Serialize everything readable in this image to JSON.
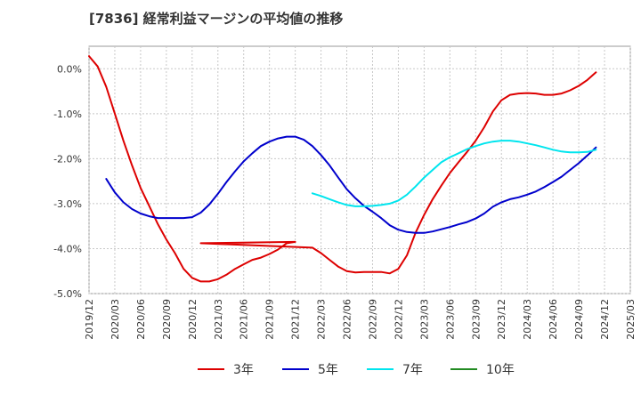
{
  "chart_data": {
    "type": "line",
    "title": "[7836]  経常利益マージンの平均値の推移",
    "xlabel": "",
    "ylabel": "",
    "ylim": [
      -5.0,
      0.5
    ],
    "xlim": [
      "2019-12",
      "2025-03"
    ],
    "x_ticks": [
      "2019/12",
      "2020/03",
      "2020/06",
      "2020/09",
      "2020/12",
      "2021/03",
      "2021/06",
      "2021/09",
      "2021/12",
      "2022/03",
      "2022/06",
      "2022/09",
      "2022/12",
      "2023/03",
      "2023/06",
      "2023/09",
      "2023/12",
      "2024/03",
      "2024/06",
      "2024/09",
      "2024/12",
      "2025/03"
    ],
    "y_ticks": [
      0.0,
      -1.0,
      -2.0,
      -3.0,
      -4.0,
      -5.0
    ],
    "y_tick_labels": [
      "0.0%",
      "-1.0%",
      "-2.0%",
      "-3.0%",
      "-4.0%",
      "-5.0%"
    ],
    "grid": true,
    "legend_position": "bottom",
    "series": [
      {
        "name": "3年",
        "color": "#dd0000",
        "points": [
          [
            "2019-12",
            0.28
          ],
          [
            "2020-01",
            0.05
          ],
          [
            "2020-02",
            -0.4
          ],
          [
            "2020-03",
            -1.0
          ],
          [
            "2020-04",
            -1.6
          ],
          [
            "2020-05",
            -2.15
          ],
          [
            "2020-06",
            -2.65
          ],
          [
            "2020-07",
            -3.05
          ],
          [
            "2020-08",
            -3.45
          ],
          [
            "2020-09",
            -3.8
          ],
          [
            "2020-10",
            -4.1
          ],
          [
            "2020-11",
            -4.45
          ],
          [
            "2020-12",
            -4.65
          ],
          [
            "2021-01",
            -4.73
          ],
          [
            "2021-02",
            -4.73
          ],
          [
            "2021-03",
            -4.68
          ],
          [
            "2021-04",
            -4.58
          ],
          [
            "2021-05",
            -4.45
          ],
          [
            "2021-06",
            -4.35
          ],
          [
            "2021-07",
            -4.25
          ],
          [
            "2021-08",
            -4.2
          ],
          [
            "2021-09",
            -4.12
          ],
          [
            "2021-10",
            -4.02
          ],
          [
            "2021-11",
            -3.88
          ],
          [
            "2021-12",
            -3.85
          ],
          [
            "2021-01",
            -3.88
          ],
          [
            "2022-02",
            -3.98
          ],
          [
            "2022-03",
            -4.1
          ],
          [
            "2022-04",
            -4.25
          ],
          [
            "2022-05",
            -4.4
          ],
          [
            "2022-06",
            -4.5
          ],
          [
            "2022-07",
            -4.53
          ],
          [
            "2022-08",
            -4.52
          ],
          [
            "2022-09",
            -4.52
          ],
          [
            "2022-10",
            -4.52
          ],
          [
            "2022-11",
            -4.55
          ],
          [
            "2022-12",
            -4.45
          ],
          [
            "2023-01",
            -4.15
          ],
          [
            "2023-02",
            -3.65
          ],
          [
            "2023-03",
            -3.25
          ],
          [
            "2023-04",
            -2.9
          ],
          [
            "2023-05",
            -2.6
          ],
          [
            "2023-06",
            -2.32
          ],
          [
            "2023-07",
            -2.08
          ],
          [
            "2023-08",
            -1.85
          ],
          [
            "2023-09",
            -1.6
          ],
          [
            "2023-10",
            -1.3
          ],
          [
            "2023-11",
            -0.95
          ],
          [
            "2023-12",
            -0.7
          ],
          [
            "2024-01",
            -0.58
          ],
          [
            "2024-02",
            -0.55
          ],
          [
            "2024-03",
            -0.54
          ],
          [
            "2024-04",
            -0.55
          ],
          [
            "2024-05",
            -0.58
          ],
          [
            "2024-06",
            -0.58
          ],
          [
            "2024-07",
            -0.55
          ],
          [
            "2024-08",
            -0.48
          ],
          [
            "2024-09",
            -0.38
          ],
          [
            "2024-10",
            -0.25
          ],
          [
            "2024-11",
            -0.08
          ]
        ]
      },
      {
        "name": "5年",
        "color": "#0000cc",
        "points": [
          [
            "2020-02",
            -2.45
          ],
          [
            "2020-03",
            -2.75
          ],
          [
            "2020-04",
            -2.97
          ],
          [
            "2020-05",
            -3.12
          ],
          [
            "2020-06",
            -3.22
          ],
          [
            "2020-07",
            -3.28
          ],
          [
            "2020-08",
            -3.32
          ],
          [
            "2020-09",
            -3.32
          ],
          [
            "2020-10",
            -3.32
          ],
          [
            "2020-11",
            -3.32
          ],
          [
            "2020-12",
            -3.3
          ],
          [
            "2021-01",
            -3.2
          ],
          [
            "2021-02",
            -3.02
          ],
          [
            "2021-03",
            -2.78
          ],
          [
            "2021-04",
            -2.52
          ],
          [
            "2021-05",
            -2.28
          ],
          [
            "2021-06",
            -2.06
          ],
          [
            "2021-07",
            -1.88
          ],
          [
            "2021-08",
            -1.72
          ],
          [
            "2021-09",
            -1.62
          ],
          [
            "2021-10",
            -1.55
          ],
          [
            "2021-11",
            -1.51
          ],
          [
            "2021-12",
            -1.51
          ],
          [
            "2022-01",
            -1.58
          ],
          [
            "2022-02",
            -1.72
          ],
          [
            "2022-03",
            -1.92
          ],
          [
            "2022-04",
            -2.15
          ],
          [
            "2022-05",
            -2.42
          ],
          [
            "2022-06",
            -2.68
          ],
          [
            "2022-07",
            -2.88
          ],
          [
            "2022-08",
            -3.05
          ],
          [
            "2022-09",
            -3.18
          ],
          [
            "2022-10",
            -3.32
          ],
          [
            "2022-11",
            -3.48
          ],
          [
            "2022-12",
            -3.58
          ],
          [
            "2023-01",
            -3.63
          ],
          [
            "2023-02",
            -3.65
          ],
          [
            "2023-03",
            -3.65
          ],
          [
            "2023-04",
            -3.62
          ],
          [
            "2023-05",
            -3.57
          ],
          [
            "2023-06",
            -3.52
          ],
          [
            "2023-07",
            -3.46
          ],
          [
            "2023-08",
            -3.41
          ],
          [
            "2023-09",
            -3.33
          ],
          [
            "2023-10",
            -3.22
          ],
          [
            "2023-11",
            -3.07
          ],
          [
            "2023-12",
            -2.97
          ],
          [
            "2024-01",
            -2.9
          ],
          [
            "2024-02",
            -2.86
          ],
          [
            "2024-03",
            -2.8
          ],
          [
            "2024-04",
            -2.73
          ],
          [
            "2024-05",
            -2.63
          ],
          [
            "2024-06",
            -2.52
          ],
          [
            "2024-07",
            -2.4
          ],
          [
            "2024-08",
            -2.25
          ],
          [
            "2024-09",
            -2.1
          ],
          [
            "2024-10",
            -1.93
          ],
          [
            "2024-11",
            -1.75
          ]
        ]
      },
      {
        "name": "7年",
        "color": "#00e5ee",
        "points": [
          [
            "2022-02",
            -2.77
          ],
          [
            "2022-03",
            -2.83
          ],
          [
            "2022-04",
            -2.9
          ],
          [
            "2022-05",
            -2.97
          ],
          [
            "2022-06",
            -3.03
          ],
          [
            "2022-07",
            -3.06
          ],
          [
            "2022-08",
            -3.06
          ],
          [
            "2022-09",
            -3.05
          ],
          [
            "2022-10",
            -3.03
          ],
          [
            "2022-11",
            -3.0
          ],
          [
            "2022-12",
            -2.93
          ],
          [
            "2023-01",
            -2.8
          ],
          [
            "2023-02",
            -2.62
          ],
          [
            "2023-03",
            -2.42
          ],
          [
            "2023-04",
            -2.25
          ],
          [
            "2023-05",
            -2.08
          ],
          [
            "2023-06",
            -1.97
          ],
          [
            "2023-07",
            -1.88
          ],
          [
            "2023-08",
            -1.79
          ],
          [
            "2023-09",
            -1.72
          ],
          [
            "2023-10",
            -1.66
          ],
          [
            "2023-11",
            -1.62
          ],
          [
            "2023-12",
            -1.6
          ],
          [
            "2024-01",
            -1.6
          ],
          [
            "2024-02",
            -1.62
          ],
          [
            "2024-03",
            -1.66
          ],
          [
            "2024-04",
            -1.7
          ],
          [
            "2024-05",
            -1.75
          ],
          [
            "2024-06",
            -1.8
          ],
          [
            "2024-07",
            -1.84
          ],
          [
            "2024-08",
            -1.86
          ],
          [
            "2024-09",
            -1.86
          ],
          [
            "2024-10",
            -1.85
          ],
          [
            "2024-11",
            -1.8
          ]
        ]
      },
      {
        "name": "10年",
        "color": "#228b22",
        "points": []
      }
    ]
  }
}
